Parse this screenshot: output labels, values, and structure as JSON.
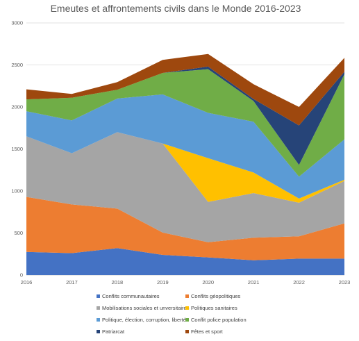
{
  "chart_data": {
    "type": "area",
    "stacked": true,
    "title": "Emeutes et affrontements civils dans le Monde 2016-2023",
    "xlabel": "",
    "ylabel": "",
    "x": [
      "2016",
      "2017",
      "2018",
      "2019",
      "2020",
      "2021",
      "2022",
      "2023"
    ],
    "ylim": [
      0,
      3000
    ],
    "yticks": [
      0,
      500,
      1000,
      1500,
      2000,
      2500,
      3000
    ],
    "grid": true,
    "legend_position": "bottom",
    "series": [
      {
        "name": "Conflits communautaires",
        "color": "#4472C4",
        "values": [
          275,
          260,
          320,
          240,
          210,
          175,
          195,
          195
        ]
      },
      {
        "name": "Conflits géopolitiques",
        "color": "#ED7D31",
        "values": [
          655,
          580,
          470,
          265,
          180,
          270,
          265,
          420
        ]
      },
      {
        "name": "Mobilisations sociales et unversitaires",
        "color": "#A5A5A5",
        "values": [
          720,
          610,
          910,
          1060,
          480,
          530,
          400,
          505
        ]
      },
      {
        "name": "Politiques sanitaires",
        "color": "#FFC000",
        "values": [
          0,
          0,
          0,
          0,
          520,
          245,
          50,
          15
        ]
      },
      {
        "name": "Politique, élection, corruption, libertés",
        "color": "#5B9BD5",
        "values": [
          300,
          390,
          400,
          585,
          540,
          605,
          260,
          480
        ]
      },
      {
        "name": "Conflit police population",
        "color": "#70AD47",
        "values": [
          140,
          270,
          105,
          255,
          520,
          245,
          140,
          775
        ]
      },
      {
        "name": "Patriarcat",
        "color": "#264478",
        "values": [
          0,
          0,
          0,
          0,
          30,
          25,
          470,
          30
        ]
      },
      {
        "name": "Fêtes et sport",
        "color": "#9E480E",
        "values": [
          120,
          45,
          90,
          155,
          150,
          175,
          220,
          165
        ]
      }
    ]
  }
}
